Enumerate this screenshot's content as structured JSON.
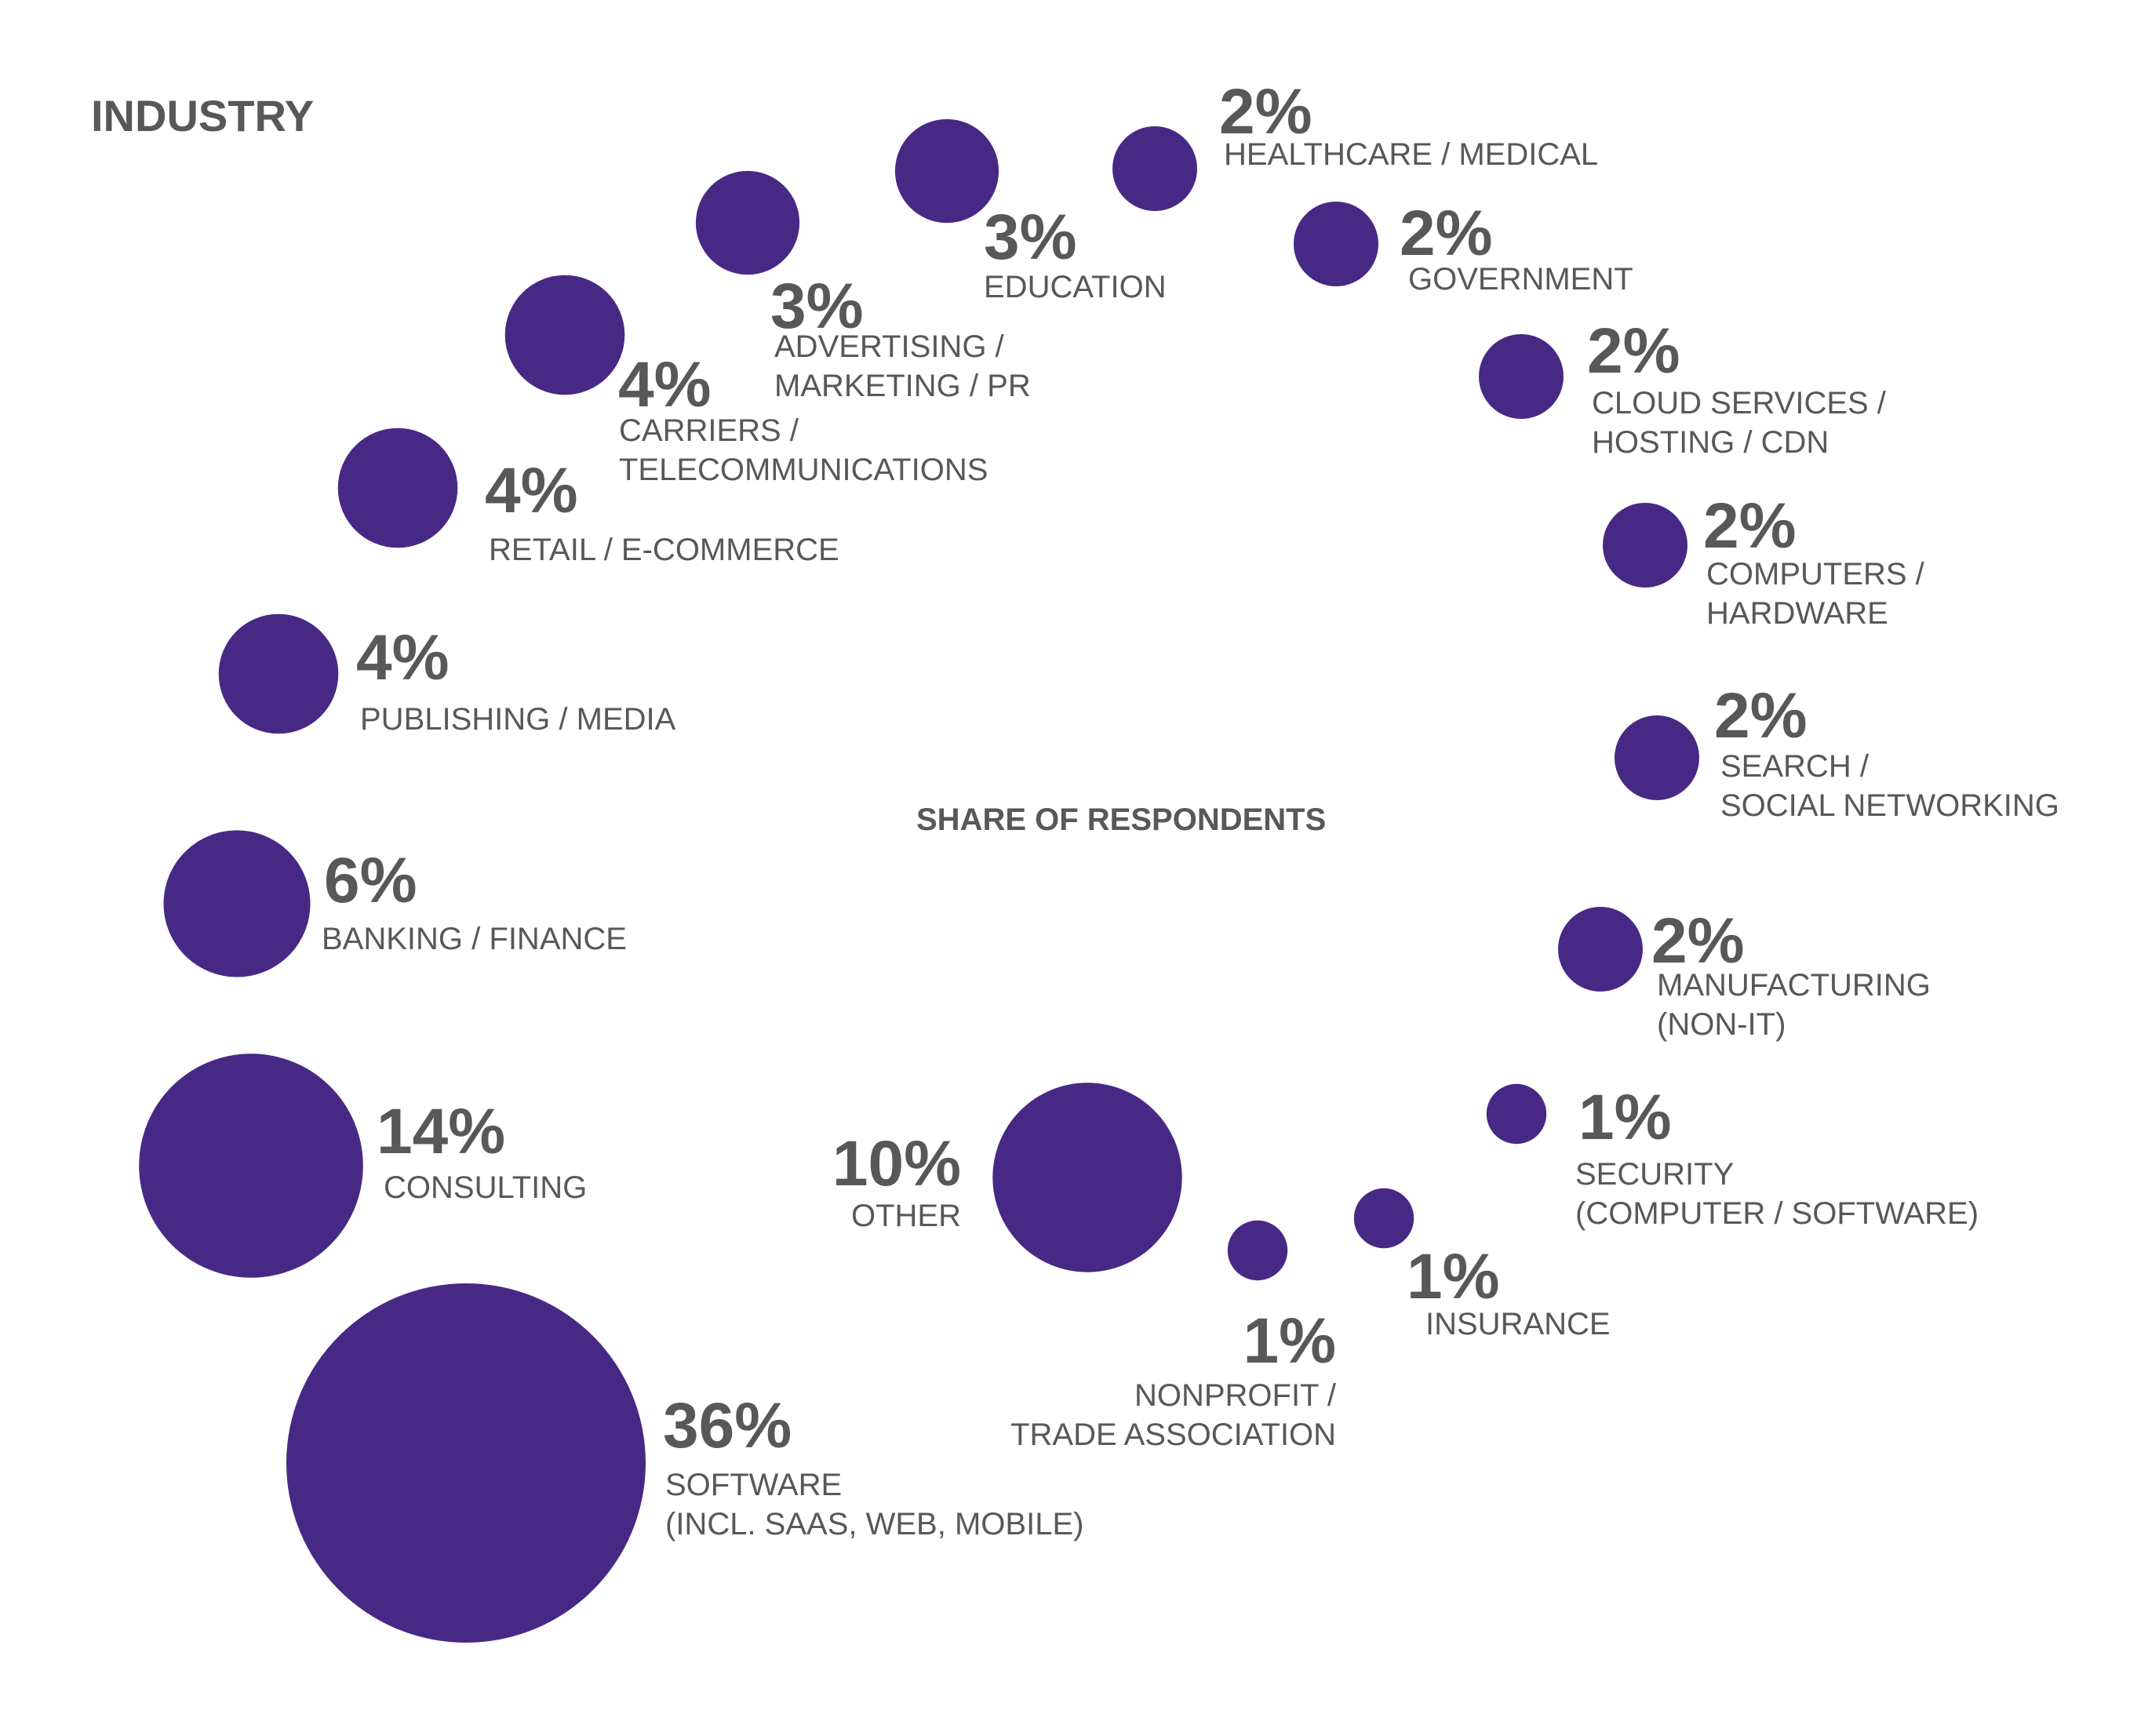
{
  "chart_data": {
    "type": "bubble",
    "title": "INDUSTRY",
    "subtitle": "SHARE OF RESPONDENTS",
    "color": "#472985",
    "text_color": "#58585a",
    "points": [
      {
        "label": "SOFTWARE (INCL. SAAS, WEB, MOBILE)",
        "lines": [
          "SOFTWARE",
          "(INCL. SAAS, WEB, MOBILE)"
        ],
        "value": 36,
        "display": "36%"
      },
      {
        "label": "CONSULTING",
        "lines": [
          "CONSULTING"
        ],
        "value": 14,
        "display": "14%"
      },
      {
        "label": "BANKING / FINANCE",
        "lines": [
          "BANKING / FINANCE"
        ],
        "value": 6,
        "display": "6%"
      },
      {
        "label": "PUBLISHING / MEDIA",
        "lines": [
          "PUBLISHING / MEDIA"
        ],
        "value": 4,
        "display": "4%"
      },
      {
        "label": "RETAIL / E-COMMERCE",
        "lines": [
          "RETAIL / E-COMMERCE"
        ],
        "value": 4,
        "display": "4%"
      },
      {
        "label": "CARRIERS / TELECOMMUNICATIONS",
        "lines": [
          "CARRIERS /",
          "TELECOMMUNICATIONS"
        ],
        "value": 4,
        "display": "4%"
      },
      {
        "label": "ADVERTISING / MARKETING / PR",
        "lines": [
          "ADVERTISING /",
          "MARKETING / PR"
        ],
        "value": 3,
        "display": "3%"
      },
      {
        "label": "EDUCATION",
        "lines": [
          "EDUCATION"
        ],
        "value": 3,
        "display": "3%"
      },
      {
        "label": "HEALTHCARE / MEDICAL",
        "lines": [
          "HEALTHCARE / MEDICAL"
        ],
        "value": 2,
        "display": "2%"
      },
      {
        "label": "GOVERNMENT",
        "lines": [
          "GOVERNMENT"
        ],
        "value": 2,
        "display": "2%"
      },
      {
        "label": "CLOUD SERVICES / HOSTING / CDN",
        "lines": [
          "CLOUD SERVICES /",
          "HOSTING / CDN"
        ],
        "value": 2,
        "display": "2%"
      },
      {
        "label": "COMPUTERS / HARDWARE",
        "lines": [
          "COMPUTERS /",
          "HARDWARE"
        ],
        "value": 2,
        "display": "2%"
      },
      {
        "label": "SEARCH / SOCIAL NETWORKING",
        "lines": [
          "SEARCH /",
          "SOCIAL NETWORKING"
        ],
        "value": 2,
        "display": "2%"
      },
      {
        "label": "MANUFACTURING (NON-IT)",
        "lines": [
          "MANUFACTURING",
          "(NON-IT)"
        ],
        "value": 2,
        "display": "2%"
      },
      {
        "label": "SECURITY (COMPUTER / SOFTWARE)",
        "lines": [
          "SECURITY",
          "(COMPUTER / SOFTWARE)"
        ],
        "value": 1,
        "display": "1%"
      },
      {
        "label": "INSURANCE",
        "lines": [
          "INSURANCE"
        ],
        "value": 1,
        "display": "1%"
      },
      {
        "label": "NONPROFIT / TRADE ASSOCIATION",
        "lines": [
          "NONPROFIT /",
          "TRADE ASSOCIATION"
        ],
        "value": 1,
        "display": "1%"
      },
      {
        "label": "OTHER",
        "lines": [
          "OTHER"
        ],
        "value": 10,
        "display": "10%"
      }
    ]
  }
}
